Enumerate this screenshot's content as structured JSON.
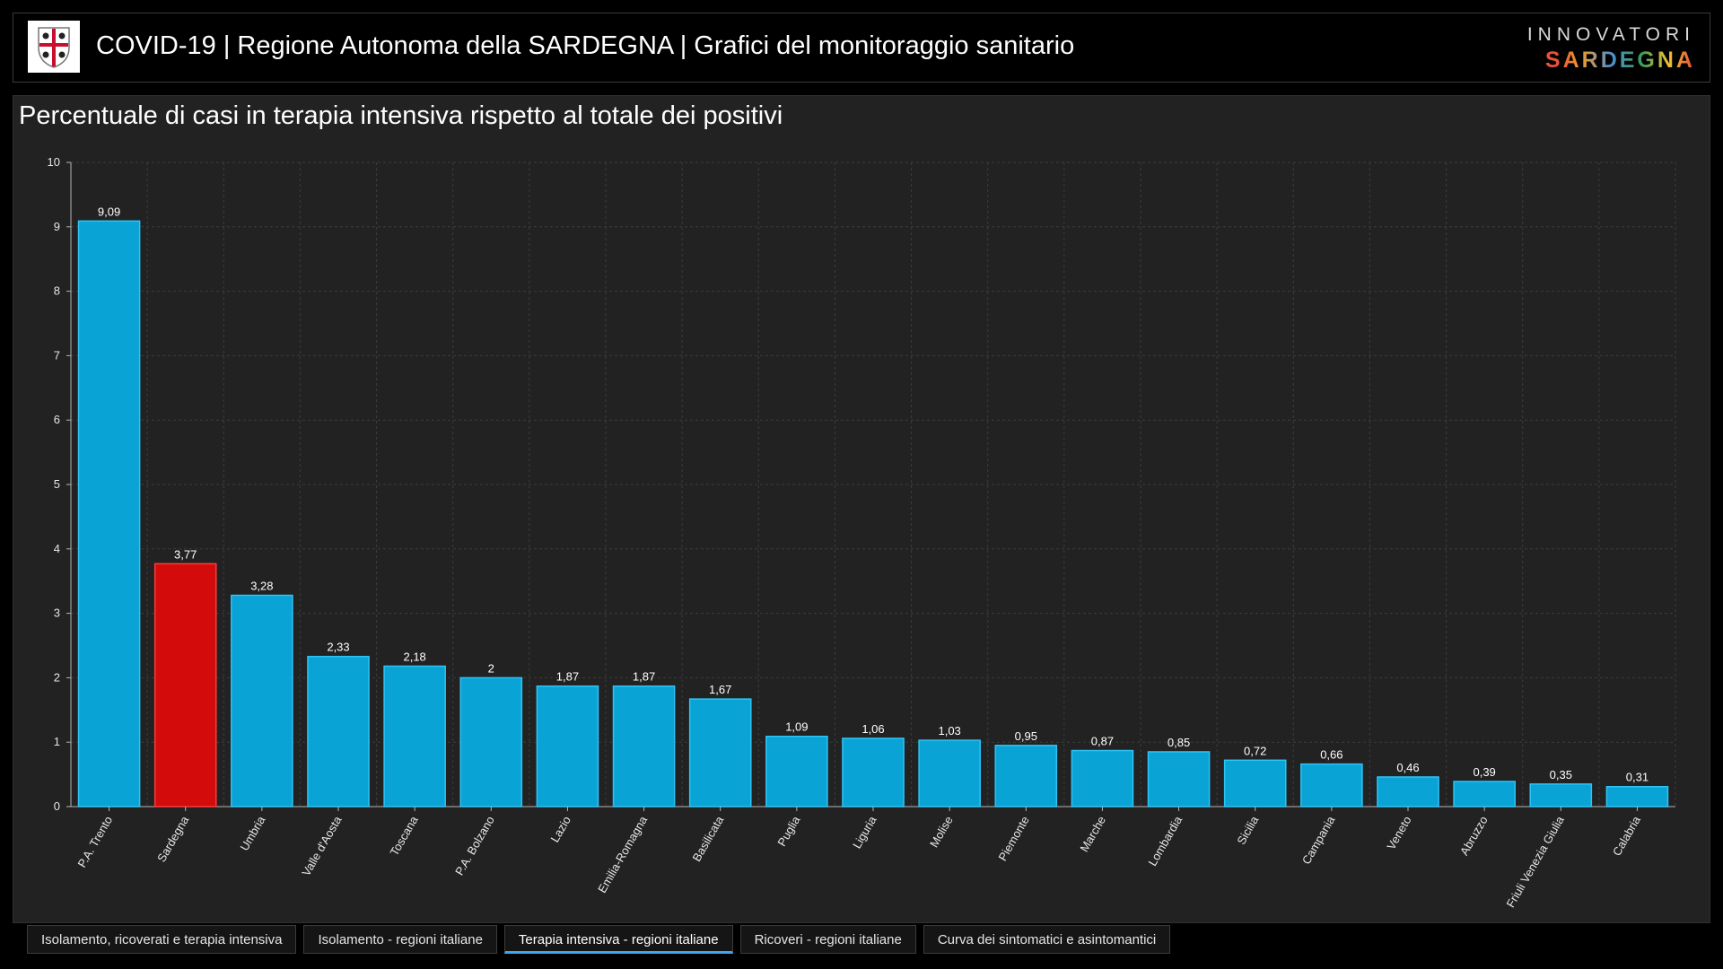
{
  "header": {
    "title": "COVID-19 | Regione Autonoma della SARDEGNA | Grafici del monitoraggio sanitario",
    "brand_top": "INNOVATORI",
    "brand_bottom": "SARDEGNA"
  },
  "tabs": [
    {
      "label": "Isolamento, ricoverati e terapia intensiva",
      "active": false
    },
    {
      "label": "Isolamento - regioni italiane",
      "active": false
    },
    {
      "label": "Terapia intensiva - regioni italiane",
      "active": true
    },
    {
      "label": "Ricoveri - regioni italiane",
      "active": false
    },
    {
      "label": "Curva dei sintomatici e asintomantici",
      "active": false
    }
  ],
  "colors": {
    "bar": "#0aa3d6",
    "bar_border": "#2fc3f5",
    "highlight": "#d40b0b",
    "highlight_border": "#ff3a3a",
    "grid": "#3c3c3c",
    "axis": "#b5b5b5"
  },
  "chart_data": {
    "type": "bar",
    "title": "Percentuale di casi in terapia intensiva rispetto al totale dei positivi",
    "xlabel": "",
    "ylabel": "",
    "ylim": [
      0,
      10
    ],
    "yticks": [
      0,
      1,
      2,
      3,
      4,
      5,
      6,
      7,
      8,
      9,
      10
    ],
    "grid": true,
    "highlight_category": "Sardegna",
    "categories": [
      "P.A. Trento",
      "Sardegna",
      "Umbria",
      "Valle d'Aosta",
      "Toscana",
      "P.A. Bolzano",
      "Lazio",
      "Emilia-Romagna",
      "Basilicata",
      "Puglia",
      "Liguria",
      "Molise",
      "Piemonte",
      "Marche",
      "Lombardia",
      "Sicilia",
      "Campania",
      "Veneto",
      "Abruzzo",
      "Friuli Venezia Giulia",
      "Calabria"
    ],
    "values": [
      9.09,
      3.77,
      3.28,
      2.33,
      2.18,
      2,
      1.87,
      1.87,
      1.67,
      1.09,
      1.06,
      1.03,
      0.95,
      0.87,
      0.85,
      0.72,
      0.66,
      0.46,
      0.39,
      0.35,
      0.31
    ],
    "value_labels": [
      "9,09",
      "3,77",
      "3,28",
      "2,33",
      "2,18",
      "2",
      "1,87",
      "1,87",
      "1,67",
      "1,09",
      "1,06",
      "1,03",
      "0,95",
      "0,87",
      "0,85",
      "0,72",
      "0,66",
      "0,46",
      "0,39",
      "0,35",
      "0,31"
    ]
  }
}
